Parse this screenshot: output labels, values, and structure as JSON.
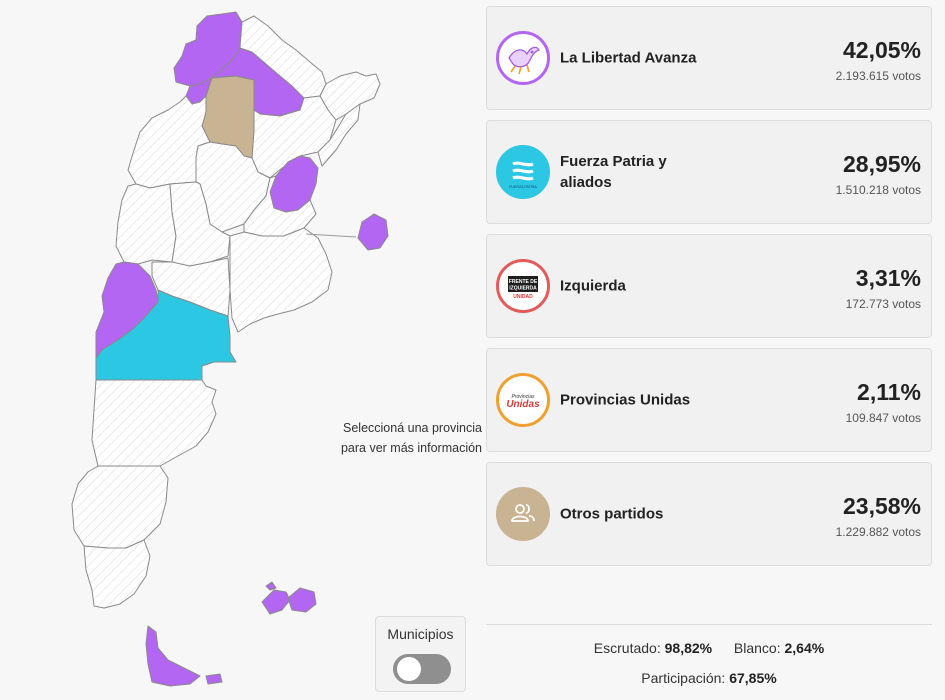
{
  "map": {
    "hint_line1": "Seleccioná una provincia",
    "hint_line2": "para ver más información",
    "colors": {
      "lla": "#b366f2",
      "fuerza_patria": "#2cc7e3",
      "other": "#c8b392",
      "no_data": "#ffffff"
    }
  },
  "municipios": {
    "label": "Municipios",
    "enabled": false
  },
  "results": [
    {
      "party": "La Libertad Avanza",
      "percent": "42,05%",
      "votes": "2.193.615 votos",
      "color": "#b366f2",
      "icon": "dove-logo-icon"
    },
    {
      "party": "Fuerza Patria y aliados",
      "percent": "28,95%",
      "votes": "1.510.218 votos",
      "color": "#2cc7e3",
      "icon": "fuerza-patria-logo-icon",
      "logo_text": "FUERZA PATRIA"
    },
    {
      "party": "Izquierda",
      "percent": "3,31%",
      "votes": "172.773 votos",
      "color": "#e35a5a",
      "icon": "frente-izquierda-logo-icon",
      "logo_lines": [
        "FRENTE DE",
        "IZQUIERDA",
        "UNIDAD"
      ]
    },
    {
      "party": "Provincias Unidas",
      "percent": "2,11%",
      "votes": "109.847 votos",
      "color": "#f0a030",
      "icon": "provincias-unidas-logo-icon",
      "logo_small": "Provincias",
      "logo_big": "Unidas"
    },
    {
      "party": "Otros partidos",
      "percent": "23,58%",
      "votes": "1.229.882 votos",
      "color": "#c8b392",
      "icon": "users-icon"
    }
  ],
  "summary": {
    "escrutado_label": "Escrutado:",
    "escrutado_value": "98,82%",
    "blanco_label": "Blanco:",
    "blanco_value": "2,64%",
    "participacion_label": "Participación:",
    "participacion_value": "67,85%"
  }
}
